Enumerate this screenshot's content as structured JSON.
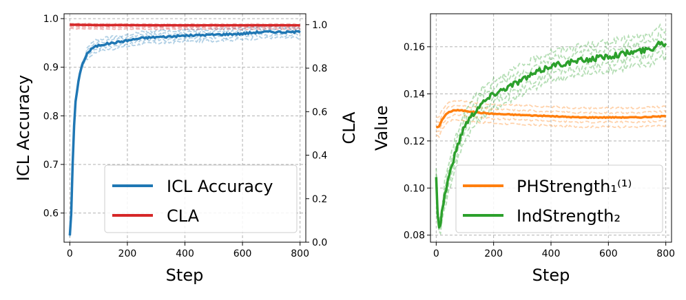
{
  "chart_data": [
    {
      "type": "line",
      "xlabel": "Step",
      "ylabel": "ICL Accuracy",
      "y2label": "CLA",
      "xlim": [
        -20,
        820
      ],
      "ylim": [
        0.54,
        1.01
      ],
      "y2lim": [
        0.0,
        1.05
      ],
      "xticks": [
        0,
        200,
        400,
        600,
        800
      ],
      "xtick_labels": [
        "0",
        "200",
        "400",
        "600",
        "800"
      ],
      "yticks": [
        0.6,
        0.7,
        0.8,
        0.9,
        1.0
      ],
      "ytick_labels": [
        "0.6",
        "0.7",
        "0.8",
        "0.9",
        "1.0"
      ],
      "y2ticks": [
        0.0,
        0.2,
        0.4,
        0.6,
        0.8,
        1.0
      ],
      "y2tick_labels": [
        "0.0",
        "0.2",
        "0.4",
        "0.6",
        "0.8",
        "1.0"
      ],
      "grid": true,
      "legend_position": "bottom-right",
      "series": [
        {
          "name": "ICL Accuracy",
          "axis": "left",
          "color": "#1f77b4",
          "x": [
            0,
            5,
            10,
            15,
            20,
            30,
            40,
            50,
            60,
            80,
            100,
            125,
            150,
            200,
            250,
            300,
            350,
            400,
            450,
            500,
            550,
            600,
            650,
            700,
            750,
            800
          ],
          "values": [
            0.555,
            0.6,
            0.7,
            0.78,
            0.83,
            0.87,
            0.9,
            0.915,
            0.928,
            0.94,
            0.945,
            0.948,
            0.95,
            0.955,
            0.96,
            0.962,
            0.963,
            0.965,
            0.966,
            0.967,
            0.968,
            0.969,
            0.972,
            0.973,
            0.972,
            0.973
          ]
        },
        {
          "name": "CLA",
          "axis": "right",
          "color": "#d62728",
          "x": [
            0,
            100,
            200,
            300,
            400,
            500,
            600,
            700,
            800
          ],
          "values": [
            1.0,
            0.998,
            0.998,
            0.997,
            0.997,
            0.997,
            0.997,
            0.997,
            0.997
          ]
        }
      ],
      "legend": [
        "ICL Accuracy",
        "CLA"
      ]
    },
    {
      "type": "line",
      "xlabel": "Step",
      "ylabel": "Value",
      "xlim": [
        -20,
        820
      ],
      "ylim": [
        0.077,
        0.174
      ],
      "xticks": [
        0,
        200,
        400,
        600,
        800
      ],
      "xtick_labels": [
        "0",
        "200",
        "400",
        "600",
        "800"
      ],
      "yticks": [
        0.08,
        0.1,
        0.12,
        0.14,
        0.16
      ],
      "ytick_labels": [
        "0.08",
        "0.10",
        "0.12",
        "0.14",
        "0.16"
      ],
      "grid": true,
      "legend_position": "bottom-right",
      "series": [
        {
          "name": "PHStrength₁⁽¹⁾",
          "color": "#ff7f0e",
          "x": [
            0,
            10,
            20,
            40,
            60,
            80,
            100,
            150,
            200,
            300,
            400,
            500,
            600,
            700,
            800
          ],
          "values": [
            0.126,
            0.126,
            0.129,
            0.132,
            0.133,
            0.133,
            0.1328,
            0.132,
            0.1315,
            0.131,
            0.1305,
            0.13,
            0.13,
            0.13,
            0.1305
          ]
        },
        {
          "name": "IndStrength₂",
          "color": "#2ca02c",
          "x": [
            0,
            5,
            10,
            15,
            20,
            30,
            40,
            60,
            80,
            100,
            150,
            200,
            250,
            300,
            350,
            400,
            450,
            500,
            550,
            600,
            650,
            700,
            750,
            780,
            800
          ],
          "values": [
            0.104,
            0.09,
            0.084,
            0.085,
            0.09,
            0.097,
            0.103,
            0.112,
            0.12,
            0.127,
            0.135,
            0.14,
            0.143,
            0.146,
            0.149,
            0.152,
            0.153,
            0.154,
            0.155,
            0.156,
            0.157,
            0.158,
            0.159,
            0.162,
            0.161
          ]
        }
      ],
      "legend": [
        "PHStrength₁⁽¹⁾",
        "IndStrength₂"
      ]
    }
  ]
}
